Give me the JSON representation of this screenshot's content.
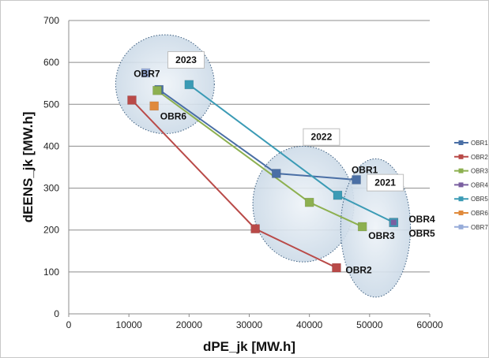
{
  "chart_data": {
    "type": "line",
    "xlabel": "dPE_jk [MW.h]",
    "ylabel": "dEENS_jk [MW.h]",
    "xlim": [
      0,
      60000
    ],
    "ylim": [
      0,
      700
    ],
    "xticks": [
      "0",
      "10000",
      "20000",
      "30000",
      "40000",
      "50000",
      "60000"
    ],
    "yticks": [
      "0",
      "100",
      "200",
      "300",
      "400",
      "500",
      "600",
      "700"
    ],
    "grid": "horizontal",
    "legend_position": "right",
    "series": [
      {
        "name": "OBR1",
        "color": "#4a6fa5",
        "points": [
          [
            15000,
            535
          ],
          [
            34500,
            335
          ],
          [
            47800,
            320
          ]
        ]
      },
      {
        "name": "OBR2",
        "color": "#b94a48",
        "points": [
          [
            10500,
            510
          ],
          [
            31000,
            203
          ],
          [
            44500,
            110
          ]
        ]
      },
      {
        "name": "OBR3",
        "color": "#8db050",
        "points": [
          [
            14700,
            533
          ],
          [
            40000,
            266
          ],
          [
            48800,
            208
          ]
        ]
      },
      {
        "name": "OBR4",
        "color": "#7a5fa0",
        "points": [
          [
            54000,
            218
          ]
        ]
      },
      {
        "name": "OBR5",
        "color": "#3b9bb5",
        "points": [
          [
            20000,
            547
          ],
          [
            44700,
            283
          ],
          [
            54000,
            218
          ]
        ]
      },
      {
        "name": "OBR6",
        "color": "#e08a3c",
        "points": [
          [
            14200,
            496
          ]
        ]
      },
      {
        "name": "OBR7",
        "color": "#97acd9",
        "points": [
          [
            12800,
            575
          ]
        ]
      }
    ],
    "annotations": [
      {
        "text": "OBR7",
        "x": 10800,
        "y": 573
      },
      {
        "text": "OBR6",
        "x": 15200,
        "y": 471
      },
      {
        "text": "OBR1",
        "x": 47000,
        "y": 343
      },
      {
        "text": "OBR2",
        "x": 46000,
        "y": 104
      },
      {
        "text": "OBR3",
        "x": 49800,
        "y": 186
      },
      {
        "text": "OBR4",
        "x": 56500,
        "y": 226
      },
      {
        "text": "OBR5",
        "x": 56500,
        "y": 192
      }
    ],
    "year_labels": [
      {
        "text": "2023",
        "x": 19500,
        "y": 606
      },
      {
        "text": "2022",
        "x": 42000,
        "y": 422
      },
      {
        "text": "2021",
        "x": 52600,
        "y": 313
      }
    ],
    "highlight_ellipses": [
      {
        "cx": 16000,
        "cy": 548,
        "rx": 8200,
        "ry": 118,
        "angle": 0
      },
      {
        "cx": 39000,
        "cy": 262,
        "rx": 8400,
        "ry": 138,
        "angle": 0
      },
      {
        "cx": 51000,
        "cy": 205,
        "rx": 5800,
        "ry": 165,
        "angle": 0
      }
    ]
  }
}
